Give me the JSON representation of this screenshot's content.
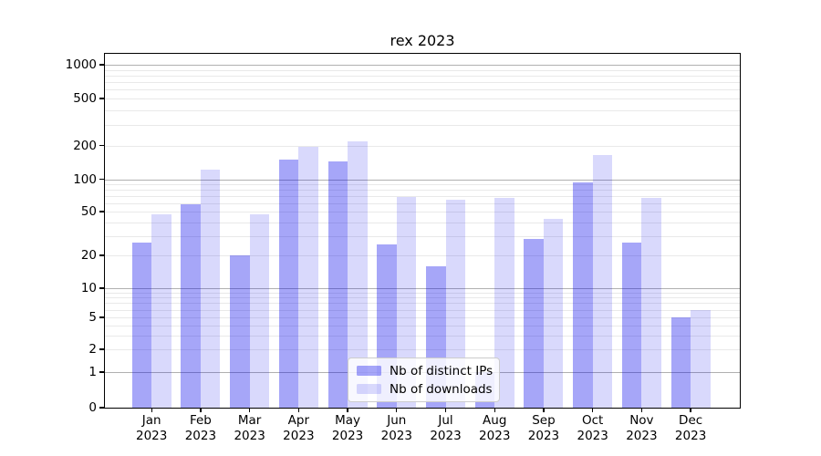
{
  "title": "rex 2023",
  "legend": {
    "items": [
      {
        "label": "Nb of distinct IPs"
      },
      {
        "label": "Nb of downloads"
      }
    ]
  },
  "y_axis": {
    "tick_labels": [
      "0",
      "1",
      "2",
      "5",
      "10",
      "20",
      "50",
      "100",
      "200",
      "500",
      "1000"
    ]
  },
  "x_axis": {
    "months": [
      "Jan",
      "Feb",
      "Mar",
      "Apr",
      "May",
      "Jun",
      "Jul",
      "Aug",
      "Sep",
      "Oct",
      "Nov",
      "Dec"
    ],
    "year": "2023"
  },
  "colors": {
    "bar_ips": "rgba(0,0,235,0.35)",
    "bar_downloads": "rgba(0,0,235,0.15)",
    "grid_major": "#b0b0b0",
    "grid_minor": "#e9e9e9",
    "bar_ips_hex": "#a6a6f8",
    "bar_downloads_hex": "#dadafb"
  },
  "chart_data": {
    "type": "bar",
    "title": "rex 2023",
    "categories": [
      "Jan 2023",
      "Feb 2023",
      "Mar 2023",
      "Apr 2023",
      "May 2023",
      "Jun 2023",
      "Jul 2023",
      "Aug 2023",
      "Sep 2023",
      "Oct 2023",
      "Nov 2023",
      "Dec 2023"
    ],
    "series": [
      {
        "name": "Nb of distinct IPs",
        "values": [
          26,
          58,
          20,
          150,
          143,
          25,
          16,
          1,
          28,
          94,
          26,
          5
        ]
      },
      {
        "name": "Nb of downloads",
        "values": [
          47,
          122,
          47,
          195,
          215,
          68,
          64,
          67,
          43,
          164,
          67,
          6
        ]
      }
    ],
    "xlabel": "",
    "ylabel": "",
    "yscale": "symlog",
    "y_ticks": [
      0,
      1,
      2,
      5,
      10,
      20,
      50,
      100,
      200,
      500,
      1000
    ],
    "ylim": [
      0,
      1250
    ],
    "grid": "on",
    "legend_position": "lower center"
  }
}
